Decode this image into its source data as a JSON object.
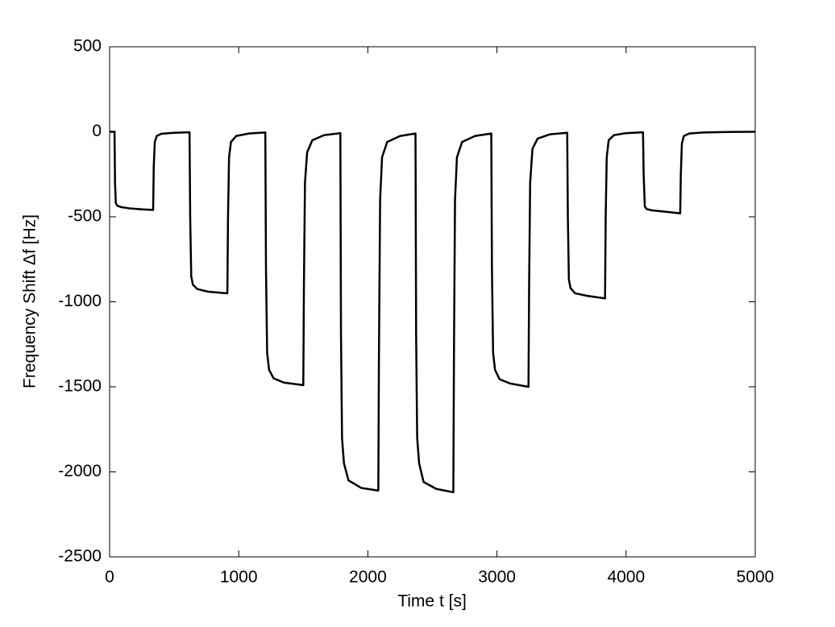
{
  "chart_data": {
    "type": "line",
    "xlabel": "Time t [s]",
    "ylabel": "Frequency Shift  Δf [Hz]",
    "xlim": [
      0,
      5000
    ],
    "xticks": [
      0,
      1000,
      2000,
      3000,
      4000,
      5000
    ],
    "ylim": [
      -2500,
      500
    ],
    "yticks": [
      -2500,
      -2000,
      -1500,
      -1000,
      -500,
      0,
      500
    ],
    "color": "#000000",
    "x": [
      0,
      38,
      42,
      48,
      60,
      90,
      150,
      250,
      337,
      342,
      350,
      365,
      400,
      500,
      619,
      624,
      632,
      645,
      680,
      760,
      912,
      917,
      925,
      940,
      980,
      1080,
      1206,
      1211,
      1220,
      1235,
      1270,
      1350,
      1500,
      1505,
      1513,
      1530,
      1570,
      1660,
      1787,
      1792,
      1800,
      1815,
      1850,
      1950,
      2081,
      2086,
      2095,
      2110,
      2150,
      2250,
      2369,
      2374,
      2382,
      2397,
      2432,
      2530,
      2662,
      2667,
      2675,
      2690,
      2730,
      2830,
      2956,
      2961,
      2970,
      2985,
      3020,
      3100,
      3244,
      3249,
      3257,
      3275,
      3315,
      3410,
      3544,
      3549,
      3557,
      3570,
      3605,
      3700,
      3837,
      3842,
      3850,
      3865,
      3905,
      4000,
      4131,
      4136,
      4145,
      4160,
      4200,
      4300,
      4419,
      4424,
      4432,
      4447,
      4490,
      4600,
      4800,
      5000
    ],
    "values": [
      0,
      0,
      -300,
      -420,
      -435,
      -443,
      -450,
      -456,
      -460,
      -200,
      -60,
      -25,
      -12,
      -6,
      -3,
      -500,
      -850,
      -900,
      -925,
      -940,
      -950,
      -500,
      -150,
      -60,
      -25,
      -10,
      -4,
      -800,
      -1300,
      -1400,
      -1450,
      -1475,
      -1490,
      -900,
      -300,
      -120,
      -50,
      -20,
      -8,
      -1200,
      -1800,
      -1950,
      -2050,
      -2095,
      -2110,
      -1300,
      -400,
      -150,
      -60,
      -25,
      -10,
      -1200,
      -1800,
      -1950,
      -2060,
      -2100,
      -2120,
      -1300,
      -400,
      -150,
      -60,
      -25,
      -10,
      -800,
      -1300,
      -1400,
      -1455,
      -1480,
      -1500,
      -900,
      -300,
      -100,
      -40,
      -15,
      -6,
      -500,
      -870,
      -920,
      -950,
      -965,
      -980,
      -500,
      -150,
      -50,
      -20,
      -8,
      -3,
      -250,
      -440,
      -455,
      -462,
      -470,
      -480,
      -250,
      -70,
      -25,
      -10,
      -4,
      -1,
      0
    ]
  }
}
